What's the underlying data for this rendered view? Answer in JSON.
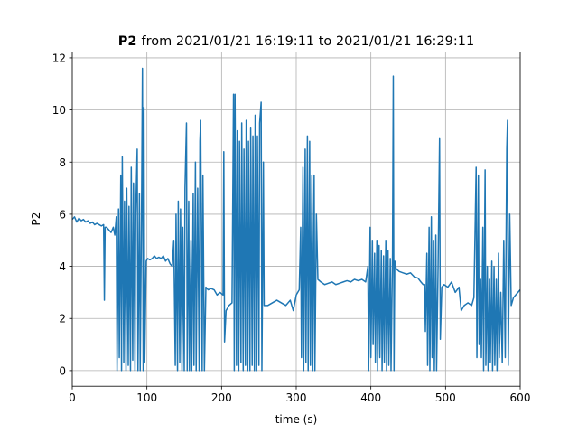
{
  "chart_data": {
    "type": "line",
    "title": [
      "P2",
      "from 2021/01/21 16:19:11 to 2021/01/21 16:29:11"
    ],
    "xlabel": "time (s)",
    "ylabel": "P2",
    "xlim": [
      0,
      600
    ],
    "ylim": [
      -0.6,
      12.22
    ],
    "xticks": [
      0,
      100,
      200,
      300,
      400,
      500,
      600
    ],
    "yticks": [
      0,
      2,
      4,
      6,
      8,
      10,
      12
    ],
    "grid": true,
    "x": [
      0,
      3,
      6,
      9,
      12,
      15,
      18,
      21,
      24,
      27,
      30,
      33,
      36,
      39,
      42,
      43,
      44,
      46,
      49,
      52,
      55,
      57,
      59,
      60,
      62,
      63,
      65,
      66,
      67,
      69,
      70,
      72,
      73,
      75,
      76,
      78,
      79,
      81,
      82,
      84,
      85,
      87,
      88,
      90,
      91,
      93,
      94,
      95,
      96,
      97,
      99,
      101,
      104,
      107,
      110,
      113,
      116,
      119,
      122,
      125,
      128,
      131,
      134,
      136,
      138,
      139,
      141,
      142,
      144,
      145,
      147,
      148,
      150,
      151,
      153,
      154,
      156,
      157,
      159,
      160,
      162,
      163,
      165,
      166,
      168,
      170,
      171,
      172,
      174,
      175,
      177,
      179,
      182,
      186,
      190,
      194,
      198,
      202,
      203,
      204,
      206,
      210,
      214,
      216,
      217,
      218,
      220,
      221,
      223,
      224,
      226,
      227,
      229,
      230,
      232,
      233,
      235,
      236,
      238,
      239,
      241,
      242,
      244,
      245,
      247,
      248,
      250,
      251,
      253,
      254,
      256,
      257,
      262,
      268,
      274,
      280,
      286,
      292,
      296,
      300,
      304,
      306,
      307,
      309,
      310,
      312,
      313,
      315,
      316,
      318,
      319,
      321,
      322,
      324,
      325,
      327,
      329,
      333,
      338,
      343,
      348,
      353,
      358,
      363,
      368,
      373,
      378,
      383,
      388,
      393,
      396,
      397,
      399,
      400,
      402,
      403,
      405,
      406,
      408,
      409,
      411,
      412,
      414,
      415,
      417,
      418,
      420,
      421,
      423,
      424,
      426,
      427,
      429,
      430,
      431,
      432,
      434,
      438,
      443,
      448,
      453,
      458,
      463,
      467,
      470,
      472,
      473,
      475,
      476,
      478,
      479,
      481,
      482,
      484,
      485,
      487,
      488,
      490,
      492,
      493,
      495,
      498,
      503,
      508,
      513,
      518,
      521,
      525,
      530,
      535,
      538,
      541,
      542,
      544,
      545,
      547,
      548,
      550,
      551,
      553,
      554,
      556,
      557,
      559,
      560,
      562,
      563,
      565,
      566,
      568,
      569,
      571,
      572,
      574,
      576,
      578,
      580,
      582,
      583,
      584,
      586,
      588,
      591,
      594,
      597,
      600
    ],
    "series": [
      {
        "name": "P2",
        "color": "#1f77b4",
        "values": [
          5.8,
          5.9,
          5.7,
          5.85,
          5.75,
          5.8,
          5.7,
          5.75,
          5.65,
          5.7,
          5.6,
          5.65,
          5.6,
          5.55,
          5.6,
          2.7,
          5.5,
          5.5,
          5.4,
          5.3,
          5.5,
          5.2,
          5.9,
          0,
          6.2,
          0.5,
          7.5,
          0,
          8.2,
          0.3,
          6.5,
          0,
          7,
          0.2,
          6.3,
          0,
          7.8,
          0.4,
          7.2,
          0,
          6,
          8.5,
          0,
          6.8,
          0,
          7,
          11.6,
          0,
          10.1,
          0.3,
          4.2,
          4.3,
          4.25,
          4.3,
          4.4,
          4.3,
          4.35,
          4.3,
          4.4,
          4.2,
          4.3,
          4.1,
          4.0,
          5,
          0.2,
          6,
          0,
          6.5,
          0.3,
          6.2,
          0,
          5.5,
          0,
          7,
          9.5,
          0,
          6.5,
          0,
          5,
          0,
          6.8,
          0.2,
          8,
          0,
          7,
          0,
          8.8,
          9.6,
          0,
          7.5,
          0,
          3.2,
          3.1,
          3.15,
          3.1,
          2.9,
          3.0,
          2.9,
          8.4,
          1.1,
          2.3,
          2.5,
          2.6,
          10.6,
          0,
          10.6,
          0.2,
          9.2,
          0,
          8.8,
          0.3,
          9.5,
          0,
          8.5,
          0.2,
          9.6,
          0,
          8.8,
          0,
          9.3,
          0.2,
          9,
          0,
          9.8,
          0,
          9,
          0.2,
          9.5,
          10.3,
          0,
          8,
          2.5,
          2.5,
          2.6,
          2.7,
          2.6,
          2.5,
          2.7,
          2.3,
          2.9,
          3.1,
          5.5,
          0.5,
          7.8,
          0,
          8.5,
          0.3,
          9,
          0,
          8.8,
          0.2,
          7.5,
          0,
          7.5,
          0,
          6,
          3.5,
          3.4,
          3.3,
          3.35,
          3.4,
          3.3,
          3.35,
          3.4,
          3.45,
          3.4,
          3.5,
          3.45,
          3.5,
          3.4,
          4,
          0,
          5.5,
          0.5,
          5,
          1,
          4.5,
          0.3,
          5,
          0,
          4.8,
          0.5,
          4.6,
          0,
          4.4,
          0.3,
          5,
          0,
          4.6,
          0.2,
          4.3,
          0,
          4.5,
          11.3,
          0,
          4.2,
          3.9,
          3.8,
          3.75,
          3.7,
          3.75,
          3.6,
          3.55,
          3.4,
          3.3,
          3.3,
          1.5,
          4.5,
          0.2,
          5.5,
          0,
          5.9,
          0.5,
          5,
          0,
          5.2,
          0,
          4,
          8.9,
          1.2,
          3.2,
          3.3,
          3.2,
          3.4,
          3.0,
          3.2,
          2.3,
          2.5,
          2.6,
          2.5,
          2.8,
          7.8,
          0.5,
          7.5,
          1,
          3.5,
          0.5,
          5.5,
          0,
          7.7,
          0.2,
          4,
          0,
          3.5,
          0.3,
          4.2,
          0,
          4,
          0.2,
          3.5,
          0,
          4.5,
          0.5,
          3,
          0.3,
          5,
          0.5,
          8.5,
          9.6,
          0.2,
          6,
          2.5,
          2.8,
          2.9,
          3.0,
          3.1
        ]
      }
    ]
  }
}
